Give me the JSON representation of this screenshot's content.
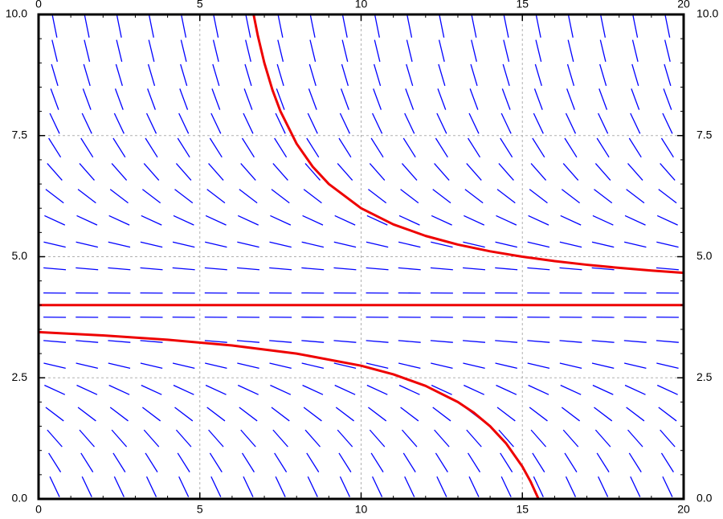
{
  "chart_data": {
    "type": "slope-field",
    "xlim": [
      0,
      20
    ],
    "ylim": [
      0,
      10
    ],
    "xticks": [
      0,
      5,
      10,
      15,
      20
    ],
    "yticks": [
      {
        "value": 0,
        "label": "0.0"
      },
      {
        "value": 2.5,
        "label": "2.5"
      },
      {
        "value": 5,
        "label": "5.0"
      },
      {
        "value": 7.5,
        "label": "7.5"
      },
      {
        "value": 10,
        "label": "10.0"
      }
    ],
    "grid": true,
    "field": {
      "color": "#0000ff",
      "x": [
        0.5,
        1.5,
        2.5,
        3.5,
        4.5,
        5.5,
        6.5,
        7.5,
        8.5,
        9.5,
        10.5,
        11.5,
        12.5,
        13.5,
        14.5,
        15.5,
        16.5,
        17.5,
        18.5,
        19.5
      ],
      "y": [
        0.25,
        0.75,
        1.25,
        1.75,
        2.25,
        2.75,
        3.25,
        3.75,
        4.25,
        4.75,
        5.25,
        5.75,
        6.25,
        6.75,
        7.25,
        7.75,
        8.25,
        8.75,
        9.25,
        9.75
      ],
      "slopes": [
        -1.40625,
        -1.05625,
        -0.75625,
        -0.50625,
        -0.30625,
        -0.15625,
        -0.05625,
        -0.00625,
        -0.00625,
        -0.05625,
        -0.15625,
        -0.30625,
        -0.50625,
        -0.75625,
        -1.05625,
        -1.40625,
        -1.80625,
        -2.25625,
        -2.75625,
        -3.30625
      ]
    },
    "series": [
      {
        "color": "#ee0000",
        "x": [
          6.667,
          6.8,
          7,
          7.25,
          7.5,
          8,
          8.5,
          9,
          10,
          11,
          12,
          13,
          14,
          15,
          16,
          17,
          18,
          19,
          20
        ],
        "values": [
          10.0,
          9.556,
          9,
          8.444,
          8,
          7.333,
          6.857,
          6.5,
          6,
          5.667,
          5.429,
          5.25,
          5.111,
          5,
          4.909,
          4.833,
          4.769,
          4.714,
          4.667
        ]
      },
      {
        "color": "#ee0000",
        "x": [
          0,
          20
        ],
        "values": [
          4,
          4
        ]
      },
      {
        "color": "#ee0000",
        "x": [
          0,
          2,
          4,
          6,
          8,
          10,
          11,
          12,
          13,
          13.5,
          14,
          14.5,
          15,
          15.25,
          15.5
        ],
        "values": [
          3.444,
          3.375,
          3.286,
          3.167,
          3,
          2.75,
          2.571,
          2.333,
          2,
          1.778,
          1.5,
          1.143,
          0.667,
          0.364,
          0
        ]
      }
    ]
  }
}
